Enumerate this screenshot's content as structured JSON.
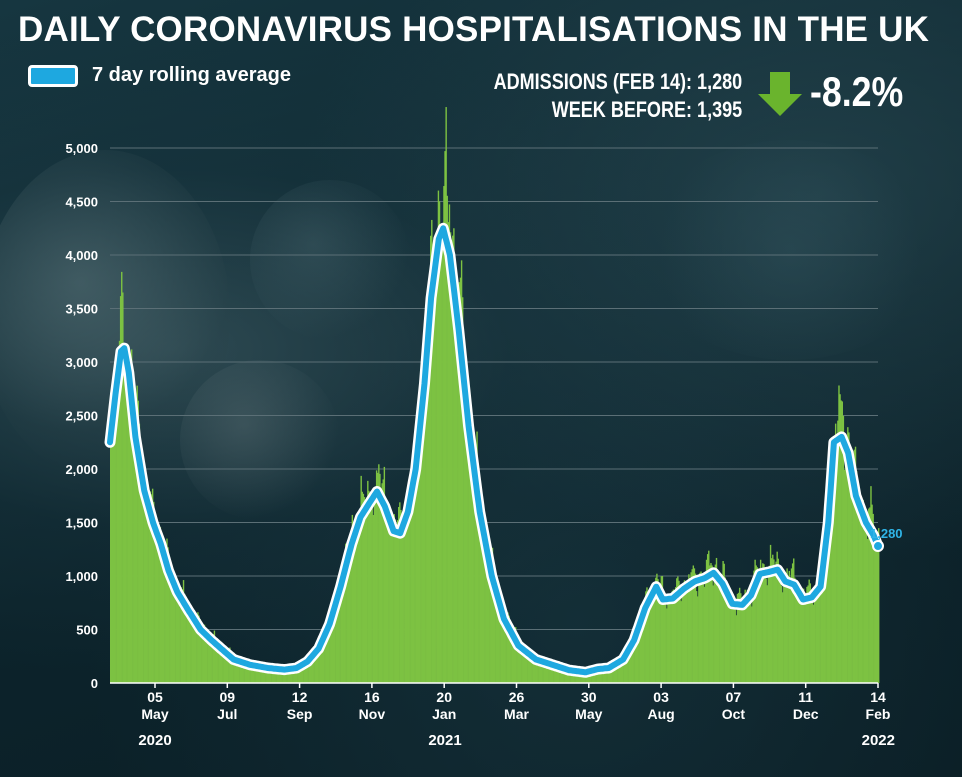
{
  "title": "DAILY CORONAVIRUS HOSPITALISATIONS IN THE UK",
  "legend": {
    "label": "7 day rolling average",
    "swatch_color": "#1ea8e0"
  },
  "stats": {
    "admissions": "ADMISSIONS (FEB 14): 1,280",
    "week_before": "WEEK BEFORE: 1,395",
    "change": "-8.2%",
    "change_icon": "down-arrow-icon",
    "change_color": "#6ab42d"
  },
  "colors": {
    "bars": "#7dc242",
    "line": "#1ea8e0",
    "line_outline": "#ffffff",
    "grid": "#5b6f76"
  },
  "chart_data": {
    "type": "bar",
    "ylim": [
      0,
      5000
    ],
    "y_ticks": [
      "0",
      "500",
      "1,000",
      "1,500",
      "2,000",
      "2,500",
      "3,000",
      "3,500",
      "4,000",
      "4,500",
      "5,000"
    ],
    "x_tick_labels": [
      {
        "day": "05",
        "month": "May"
      },
      {
        "day": "09",
        "month": "Jul"
      },
      {
        "day": "12",
        "month": "Sep"
      },
      {
        "day": "16",
        "month": "Nov"
      },
      {
        "day": "20",
        "month": "Jan"
      },
      {
        "day": "26",
        "month": "Mar"
      },
      {
        "day": "30",
        "month": "May"
      },
      {
        "day": "03",
        "month": "Aug"
      },
      {
        "day": "07",
        "month": "Oct"
      },
      {
        "day": "11",
        "month": "Dec"
      },
      {
        "day": "14",
        "month": "Feb"
      }
    ],
    "years": [
      "2020",
      "2021",
      "2022"
    ],
    "x_start": "2020-03-20",
    "x_end": "2022-02-14",
    "series": [
      {
        "name": "7 day rolling average",
        "points": [
          [
            "2020-03-20",
            2250
          ],
          [
            "2020-03-25",
            2700
          ],
          [
            "2020-03-30",
            3100
          ],
          [
            "2020-04-02",
            3130
          ],
          [
            "2020-04-06",
            2900
          ],
          [
            "2020-04-12",
            2300
          ],
          [
            "2020-04-20",
            1800
          ],
          [
            "2020-04-28",
            1500
          ],
          [
            "2020-05-05",
            1300
          ],
          [
            "2020-05-12",
            1050
          ],
          [
            "2020-05-20",
            850
          ],
          [
            "2020-05-30",
            680
          ],
          [
            "2020-06-10",
            500
          ],
          [
            "2020-06-20",
            400
          ],
          [
            "2020-07-01",
            300
          ],
          [
            "2020-07-10",
            220
          ],
          [
            "2020-07-25",
            170
          ],
          [
            "2020-08-10",
            140
          ],
          [
            "2020-08-25",
            125
          ],
          [
            "2020-09-05",
            140
          ],
          [
            "2020-09-15",
            200
          ],
          [
            "2020-09-25",
            320
          ],
          [
            "2020-10-05",
            550
          ],
          [
            "2020-10-15",
            900
          ],
          [
            "2020-10-25",
            1300
          ],
          [
            "2020-11-02",
            1550
          ],
          [
            "2020-11-10",
            1680
          ],
          [
            "2020-11-17",
            1790
          ],
          [
            "2020-11-24",
            1650
          ],
          [
            "2020-12-02",
            1420
          ],
          [
            "2020-12-08",
            1400
          ],
          [
            "2020-12-15",
            1600
          ],
          [
            "2020-12-22",
            2000
          ],
          [
            "2020-12-30",
            2800
          ],
          [
            "2021-01-05",
            3600
          ],
          [
            "2021-01-12",
            4150
          ],
          [
            "2021-01-16",
            4250
          ],
          [
            "2021-01-22",
            4000
          ],
          [
            "2021-01-30",
            3300
          ],
          [
            "2021-02-08",
            2400
          ],
          [
            "2021-02-18",
            1600
          ],
          [
            "2021-03-01",
            1000
          ],
          [
            "2021-03-12",
            600
          ],
          [
            "2021-03-25",
            350
          ],
          [
            "2021-04-10",
            220
          ],
          [
            "2021-04-25",
            170
          ],
          [
            "2021-05-10",
            120
          ],
          [
            "2021-05-25",
            100
          ],
          [
            "2021-06-05",
            130
          ],
          [
            "2021-06-15",
            140
          ],
          [
            "2021-06-28",
            220
          ],
          [
            "2021-07-08",
            400
          ],
          [
            "2021-07-18",
            700
          ],
          [
            "2021-07-28",
            900
          ],
          [
            "2021-08-03",
            780
          ],
          [
            "2021-08-12",
            790
          ],
          [
            "2021-08-22",
            880
          ],
          [
            "2021-09-01",
            950
          ],
          [
            "2021-09-10",
            980
          ],
          [
            "2021-09-18",
            1030
          ],
          [
            "2021-09-26",
            930
          ],
          [
            "2021-10-05",
            740
          ],
          [
            "2021-10-14",
            730
          ],
          [
            "2021-10-22",
            820
          ],
          [
            "2021-10-30",
            1020
          ],
          [
            "2021-11-08",
            1040
          ],
          [
            "2021-11-15",
            1060
          ],
          [
            "2021-11-22",
            950
          ],
          [
            "2021-11-30",
            920
          ],
          [
            "2021-12-08",
            780
          ],
          [
            "2021-12-16",
            800
          ],
          [
            "2021-12-24",
            900
          ],
          [
            "2021-12-31",
            1500
          ],
          [
            "2022-01-05",
            2250
          ],
          [
            "2022-01-12",
            2300
          ],
          [
            "2022-01-18",
            2150
          ],
          [
            "2022-01-25",
            1750
          ],
          [
            "2022-02-03",
            1500
          ],
          [
            "2022-02-10",
            1380
          ],
          [
            "2022-02-14",
            1280
          ]
        ]
      }
    ],
    "end_label": "1,280"
  }
}
